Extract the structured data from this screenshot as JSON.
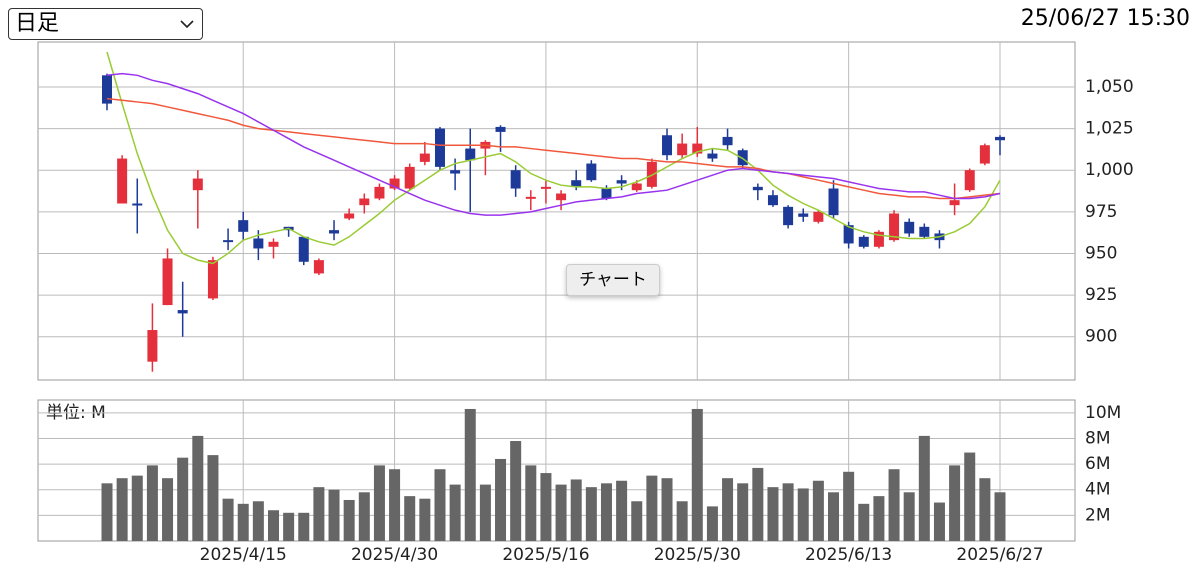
{
  "header": {
    "period_select": "日足",
    "timestamp": "25/06/27 15:30"
  },
  "tooltip": "チャート",
  "chart_data": [
    {
      "type": "candlestick",
      "up_color": "#e3303c",
      "down_color": "#1d3a98",
      "open": [
        1057,
        980,
        980,
        885,
        919,
        916,
        988,
        923,
        958,
        970,
        959,
        954,
        966,
        960,
        938,
        964,
        971,
        979,
        983,
        989,
        989,
        1005,
        1025,
        1000,
        1013,
        1013,
        1026,
        1000,
        983,
        989,
        982,
        994,
        1004,
        989,
        994,
        988,
        990,
        1021,
        1009,
        1010,
        1010,
        1020,
        1012,
        990,
        985,
        978,
        974,
        969,
        989,
        967,
        960,
        954,
        958,
        969,
        966,
        962,
        979,
        988,
        1004,
        1020
      ],
      "high": [
        1058,
        1009,
        995,
        920,
        953,
        933,
        1000,
        948,
        965,
        975,
        964,
        959,
        966,
        960,
        947,
        970,
        977,
        986,
        992,
        997,
        1004,
        1017,
        1026,
        1007,
        1025,
        1018,
        1027,
        1003,
        988,
        994,
        988,
        1000,
        1006,
        991,
        997,
        994,
        1007,
        1025,
        1022,
        1026,
        1013,
        1025,
        1013,
        992,
        988,
        979,
        977,
        976,
        994,
        969,
        961,
        964,
        976,
        971,
        968,
        964,
        992,
        1001,
        1016,
        1021
      ],
      "low": [
        1036,
        980,
        962,
        879,
        919,
        900,
        965,
        922,
        952,
        958,
        946,
        947,
        960,
        943,
        937,
        958,
        970,
        974,
        982,
        988,
        988,
        1003,
        1000,
        988,
        975,
        997,
        1011,
        984,
        976,
        980,
        976,
        988,
        993,
        982,
        988,
        987,
        989,
        1006,
        1007,
        1008,
        1005,
        1012,
        1001,
        982,
        978,
        965,
        969,
        968,
        971,
        953,
        953,
        953,
        957,
        960,
        959,
        953,
        973,
        987,
        1003,
        1009
      ],
      "close": [
        1040,
        1007,
        979,
        904,
        947,
        914,
        995,
        946,
        957,
        963,
        953,
        957,
        964,
        945,
        946,
        962,
        974,
        983,
        990,
        995,
        1002,
        1010,
        1002,
        998,
        1006,
        1017,
        1023,
        989,
        984,
        990,
        986,
        990,
        994,
        983,
        992,
        992,
        1005,
        1009,
        1016,
        1016,
        1007,
        1015,
        1003,
        988,
        979,
        967,
        972,
        975,
        973,
        956,
        954,
        963,
        974,
        962,
        960,
        958,
        982,
        1000,
        1015,
        1018
      ],
      "lines": [
        {
          "color": "#99cc33",
          "values": [
            1071,
            1040,
            1010,
            985,
            964,
            950,
            946,
            944,
            950,
            958,
            961,
            963,
            965,
            960,
            957,
            955,
            960,
            967,
            974,
            982,
            988,
            994,
            1000,
            1004,
            1006,
            1008,
            1010,
            1005,
            998,
            994,
            991,
            990,
            990,
            989,
            990,
            993,
            997,
            1002,
            1007,
            1011,
            1013,
            1012,
            1007,
            1000,
            991,
            985,
            980,
            976,
            971,
            966,
            963,
            961,
            960,
            959,
            959,
            960,
            963,
            968,
            978,
            994
          ]
        },
        {
          "color": "#f0583c",
          "values": [
            1043,
            1042,
            1041,
            1040,
            1038,
            1036,
            1034,
            1032,
            1030,
            1027,
            1025,
            1024,
            1023,
            1022,
            1021,
            1020,
            1019,
            1018,
            1017,
            1016,
            1016,
            1016,
            1015,
            1015,
            1015,
            1015,
            1014,
            1014,
            1013,
            1012,
            1011,
            1010,
            1009,
            1008,
            1007,
            1007,
            1006,
            1005,
            1005,
            1004,
            1003,
            1002,
            1002,
            1001,
            999,
            998,
            996,
            994,
            992,
            990,
            988,
            986,
            985,
            984,
            984,
            983,
            983,
            984,
            985,
            986
          ]
        },
        {
          "color": "#9933ee",
          "values": [
            1057,
            1058,
            1057,
            1054,
            1052,
            1049,
            1046,
            1042,
            1038,
            1034,
            1029,
            1024,
            1019,
            1014,
            1010,
            1006,
            1002,
            998,
            994,
            990,
            986,
            982,
            979,
            976,
            974,
            973,
            973,
            974,
            975,
            977,
            979,
            981,
            982,
            983,
            984,
            986,
            987,
            988,
            991,
            994,
            997,
            1000,
            1001,
            1000,
            999,
            998,
            997,
            996,
            995,
            993,
            991,
            989,
            988,
            987,
            987,
            985,
            983,
            983,
            984,
            986
          ]
        }
      ],
      "ylim": [
        874,
        1077
      ],
      "yticks": [
        {
          "value": 1050,
          "label": "1,050"
        },
        {
          "value": 1025,
          "label": "1,025"
        },
        {
          "value": 1000,
          "label": "1,000"
        },
        975,
        950,
        925,
        900
      ],
      "grid": true
    },
    {
      "type": "bar",
      "unit_label": "単位: M",
      "categories": [
        null,
        null,
        null,
        null,
        null,
        null,
        null,
        null,
        null,
        "2025/4/15",
        null,
        null,
        null,
        null,
        null,
        null,
        null,
        null,
        null,
        "2025/4/30",
        null,
        null,
        null,
        null,
        null,
        null,
        null,
        null,
        null,
        "2025/5/16",
        null,
        null,
        null,
        null,
        null,
        null,
        null,
        null,
        null,
        "2025/5/30",
        null,
        null,
        null,
        null,
        null,
        null,
        null,
        null,
        null,
        "2025/6/13",
        null,
        null,
        null,
        null,
        null,
        null,
        null,
        null,
        null,
        "2025/6/27"
      ],
      "values": [
        4.5,
        4.9,
        5.1,
        5.9,
        4.9,
        6.5,
        8.2,
        6.7,
        3.3,
        2.9,
        3.1,
        2.4,
        2.2,
        2.2,
        4.2,
        4.0,
        3.2,
        3.8,
        5.9,
        5.6,
        3.5,
        3.3,
        5.6,
        4.4,
        10.3,
        4.4,
        6.4,
        7.8,
        5.9,
        5.3,
        4.4,
        4.8,
        4.2,
        4.5,
        4.7,
        3.1,
        5.1,
        4.9,
        3.1,
        10.3,
        2.7,
        4.9,
        4.5,
        5.7,
        4.2,
        4.5,
        4.1,
        4.7,
        3.8,
        5.4,
        2.9,
        3.5,
        5.6,
        3.8,
        8.2,
        3.0,
        5.9,
        6.9,
        4.9,
        3.8
      ],
      "color": "#666666",
      "ylim": [
        0,
        11
      ],
      "yticks": [
        {
          "value": 10,
          "label": "10M"
        },
        {
          "value": 8,
          "label": "8M"
        },
        {
          "value": 6,
          "label": "6M"
        },
        {
          "value": 4,
          "label": "4M"
        },
        {
          "value": 2,
          "label": "2M"
        }
      ],
      "grid": true
    }
  ]
}
